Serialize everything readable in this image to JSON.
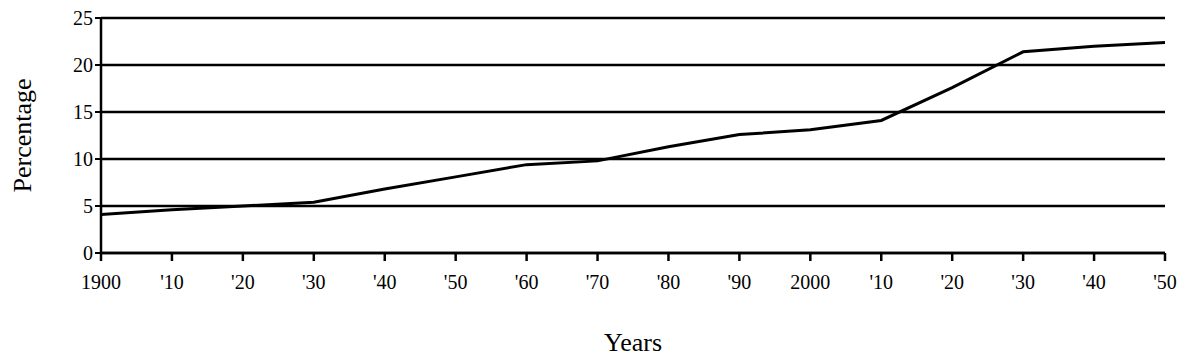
{
  "chart_data": {
    "type": "line",
    "x_label": "Years",
    "y_label": "Percentage",
    "x": [
      1900,
      1910,
      1920,
      1930,
      1940,
      1950,
      1960,
      1970,
      1980,
      1990,
      2000,
      2010,
      2020,
      2030,
      2040,
      2050
    ],
    "values": [
      4.1,
      4.6,
      5.0,
      5.4,
      6.8,
      8.1,
      9.4,
      9.8,
      11.3,
      12.6,
      13.1,
      14.1,
      17.6,
      21.4,
      22.0,
      22.4
    ],
    "color": "#000000",
    "xlim": [
      1900,
      2050
    ],
    "xticks": [
      1900,
      {
        "value": 1910,
        "label": "'10"
      },
      {
        "value": 1920,
        "label": "'20"
      },
      {
        "value": 1930,
        "label": "'30"
      },
      {
        "value": 1940,
        "label": "'40"
      },
      {
        "value": 1950,
        "label": "'50"
      },
      {
        "value": 1960,
        "label": "'60"
      },
      {
        "value": 1970,
        "label": "'70"
      },
      {
        "value": 1980,
        "label": "'80"
      },
      {
        "value": 1990,
        "label": "'90"
      },
      2000,
      {
        "value": 2010,
        "label": "'10"
      },
      {
        "value": 2020,
        "label": "'20"
      },
      {
        "value": 2030,
        "label": "'30"
      },
      {
        "value": 2040,
        "label": "'40"
      },
      {
        "value": 2050,
        "label": "'50"
      }
    ],
    "ylim": [
      0,
      25
    ],
    "yticks": [
      0,
      5,
      10,
      15,
      20,
      25
    ],
    "grid": true
  }
}
